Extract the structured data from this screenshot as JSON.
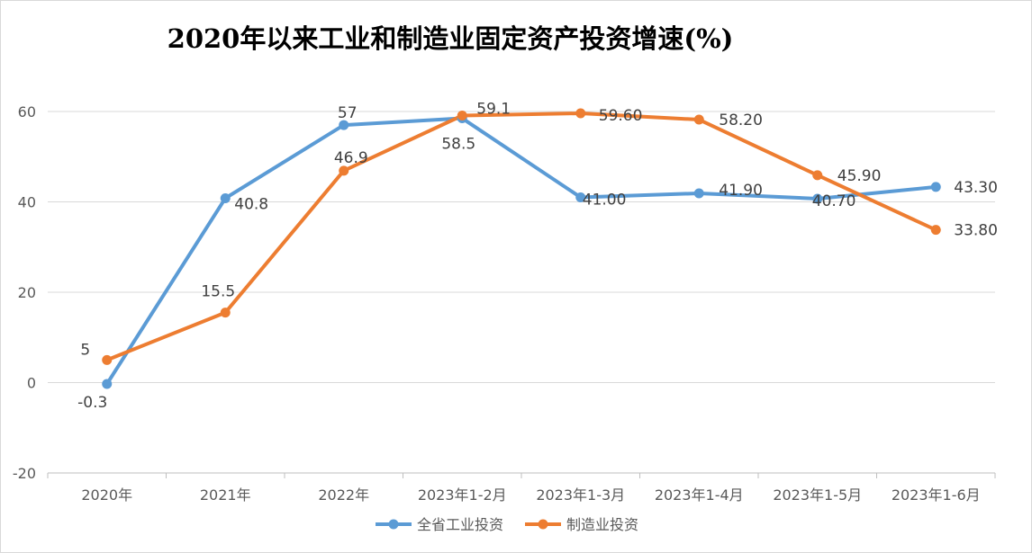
{
  "chart_data": {
    "type": "line",
    "title": "2020年以来工业和制造业固定资产投资增速(%)",
    "categories": [
      "2020年",
      "2021年",
      "2022年",
      "2023年1-2月",
      "2023年1-3月",
      "2023年1-4月",
      "2023年1-5月",
      "2023年1-6月"
    ],
    "ylim": [
      -20,
      60
    ],
    "yticks": [
      "-20",
      "0",
      "20",
      "40",
      "60"
    ],
    "grid": true,
    "legend_position": "bottom-center",
    "series": [
      {
        "name": "全省工业投资",
        "color": "#5b9bd5",
        "values": [
          -0.3,
          40.8,
          57,
          58.5,
          41.0,
          41.9,
          40.7,
          43.3
        ],
        "labels": [
          "-0.3",
          "40.8",
          "57",
          "58.5",
          "41.00",
          "41.90",
          "40.70",
          "43.30"
        ]
      },
      {
        "name": "制造业投资",
        "color": "#ed7d31",
        "values": [
          5,
          15.5,
          46.9,
          59.1,
          59.6,
          58.2,
          45.9,
          33.8
        ],
        "labels": [
          "5",
          "15.5",
          "46.9",
          "59.1",
          "59.60",
          "58.20",
          "45.90",
          "33.80"
        ]
      }
    ]
  }
}
